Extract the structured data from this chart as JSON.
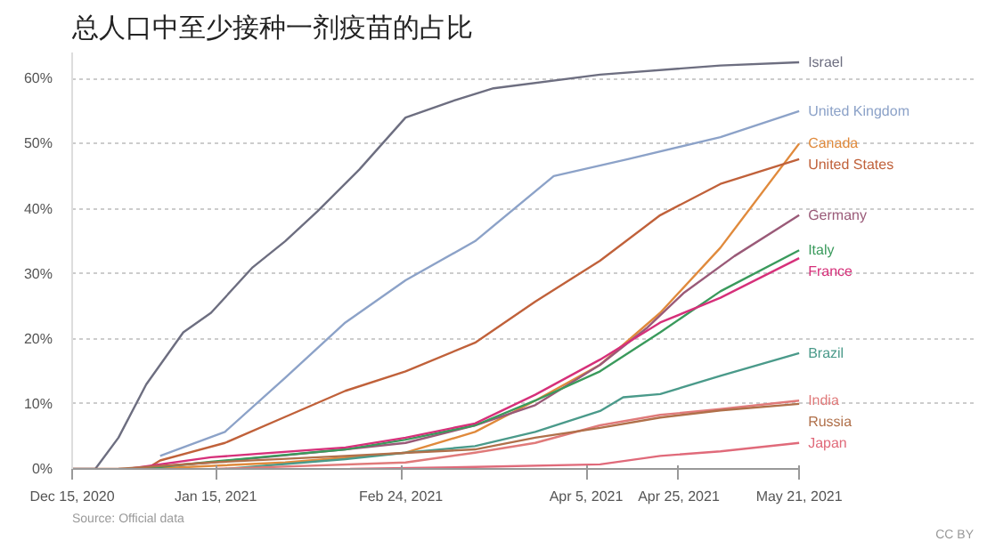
{
  "chart_data": {
    "type": "line",
    "title": "总人口中至少接种一剂疫苗的占比",
    "xlim": [
      "2020-12-15",
      "2021-05-21"
    ],
    "xticks": [
      {
        "value": "2020-12-15",
        "label": "Dec 15, 2020"
      },
      {
        "value": "2021-01-15",
        "label": "Jan 15, 2021"
      },
      {
        "value": "2021-02-24",
        "label": "Feb 24, 2021"
      },
      {
        "value": "2021-04-05",
        "label": "Apr 5, 2021"
      },
      {
        "value": "2021-04-25",
        "label": "Apr 25, 2021"
      },
      {
        "value": "2021-05-21",
        "label": "May 21, 2021"
      }
    ],
    "ylim": [
      0,
      64
    ],
    "yticks": [
      {
        "value": 0,
        "label": "0%"
      },
      {
        "value": 10,
        "label": "10%"
      },
      {
        "value": 20,
        "label": "20%"
      },
      {
        "value": 30,
        "label": "30%"
      },
      {
        "value": 40,
        "label": "40%"
      },
      {
        "value": 50,
        "label": "50%"
      },
      {
        "value": 60,
        "label": "60%"
      }
    ],
    "grid": "y",
    "marker": "none",
    "line_style": "solid",
    "annotations": [
      "Source: Official data",
      "CC BY"
    ],
    "series": [
      {
        "name": "Israel",
        "color": "#6d6e80",
        "x": [
          "2020-12-15",
          "2020-12-20",
          "2020-12-25",
          "2020-12-31",
          "2021-01-08",
          "2021-01-14",
          "2021-01-23",
          "2021-01-30",
          "2021-02-06",
          "2021-02-15",
          "2021-02-25",
          "2021-03-07",
          "2021-03-16",
          "2021-04-08",
          "2021-05-04",
          "2021-05-21"
        ],
        "values": [
          0,
          0,
          4.8,
          13,
          21,
          24,
          31,
          35,
          39.6,
          46,
          54,
          56.5,
          58.5,
          60.6,
          62,
          62.5
        ]
      },
      {
        "name": "United Kingdom",
        "color": "#8ca2c8",
        "x": [
          "2021-01-03",
          "2021-01-17",
          "2021-01-30",
          "2021-02-12",
          "2021-02-25",
          "2021-03-12",
          "2021-03-29",
          "2021-04-14",
          "2021-05-04",
          "2021-05-21"
        ],
        "values": [
          2,
          5.7,
          14,
          22.5,
          29,
          35,
          45,
          47.6,
          51,
          55
        ]
      },
      {
        "name": "Canada",
        "color": "#e08a3c",
        "x": [
          "2020-12-31",
          "2021-01-30",
          "2021-02-25",
          "2021-03-12",
          "2021-03-25",
          "2021-04-08",
          "2021-04-21",
          "2021-05-04",
          "2021-05-21"
        ],
        "values": [
          0,
          1,
          2.5,
          5.7,
          10.5,
          16,
          24,
          34,
          50
        ]
      },
      {
        "name": "United States",
        "color": "#c0613a",
        "x": [
          "2020-12-15",
          "2020-12-31",
          "2021-01-03",
          "2021-01-17",
          "2021-01-30",
          "2021-02-12",
          "2021-02-25",
          "2021-03-12",
          "2021-03-25",
          "2021-04-08",
          "2021-04-21",
          "2021-05-04",
          "2021-05-21"
        ],
        "values": [
          0,
          0,
          1.3,
          4,
          8,
          12,
          15,
          19.4,
          25.7,
          32,
          39,
          43.8,
          47.6
        ]
      },
      {
        "name": "Germany",
        "color": "#9a5a78",
        "x": [
          "2020-12-27",
          "2021-01-14",
          "2021-02-12",
          "2021-02-25",
          "2021-03-12",
          "2021-03-25",
          "2021-04-08",
          "2021-04-18",
          "2021-04-26",
          "2021-05-07",
          "2021-05-21"
        ],
        "values": [
          0,
          1,
          3,
          4,
          6.7,
          9.8,
          16,
          21.6,
          27,
          32.7,
          39
        ]
      },
      {
        "name": "Italy",
        "color": "#3a9a5c",
        "x": [
          "2020-12-30",
          "2021-01-14",
          "2021-02-12",
          "2021-02-25",
          "2021-03-12",
          "2021-03-25",
          "2021-04-08",
          "2021-04-21",
          "2021-05-04",
          "2021-05-21"
        ],
        "values": [
          0,
          1.1,
          3,
          4.5,
          6.7,
          10.5,
          15,
          21,
          27.3,
          33.6
        ]
      },
      {
        "name": "France",
        "color": "#d6307a",
        "x": [
          "2020-12-27",
          "2021-01-14",
          "2021-02-12",
          "2021-02-25",
          "2021-03-12",
          "2021-03-25",
          "2021-04-08",
          "2021-04-21",
          "2021-05-04",
          "2021-05-21"
        ],
        "values": [
          0,
          1.8,
          3.3,
          4.8,
          7,
          11.4,
          16.8,
          22.5,
          26.3,
          32.4
        ]
      },
      {
        "name": "Brazil",
        "color": "#4a9a8a",
        "x": [
          "2021-01-17",
          "2021-02-12",
          "2021-02-25",
          "2021-03-12",
          "2021-03-25",
          "2021-04-08",
          "2021-04-13",
          "2021-04-21",
          "2021-05-04",
          "2021-05-21"
        ],
        "values": [
          0,
          1.5,
          2.5,
          3.5,
          5.7,
          8.9,
          11,
          11.5,
          14.3,
          17.8
        ]
      },
      {
        "name": "India",
        "color": "#e07a7a",
        "x": [
          "2021-01-15",
          "2021-02-25",
          "2021-03-12",
          "2021-03-25",
          "2021-04-08",
          "2021-04-21",
          "2021-05-04",
          "2021-05-21"
        ],
        "values": [
          0,
          1,
          2.5,
          4,
          6.7,
          8.3,
          9.2,
          10.5
        ]
      },
      {
        "name": "Russia",
        "color": "#b0704a",
        "x": [
          "2020-12-25",
          "2021-01-14",
          "2021-02-12",
          "2021-03-12",
          "2021-03-25",
          "2021-04-08",
          "2021-04-21",
          "2021-05-04",
          "2021-05-21"
        ],
        "values": [
          0,
          1,
          2,
          3,
          4.8,
          6.3,
          7.9,
          9,
          10
        ]
      },
      {
        "name": "Japan",
        "color": "#e06a7a",
        "x": [
          "2021-02-13",
          "2021-03-12",
          "2021-04-08",
          "2021-04-21",
          "2021-05-04",
          "2021-05-21"
        ],
        "values": [
          0,
          0.3,
          0.7,
          2,
          2.7,
          4
        ]
      }
    ]
  }
}
